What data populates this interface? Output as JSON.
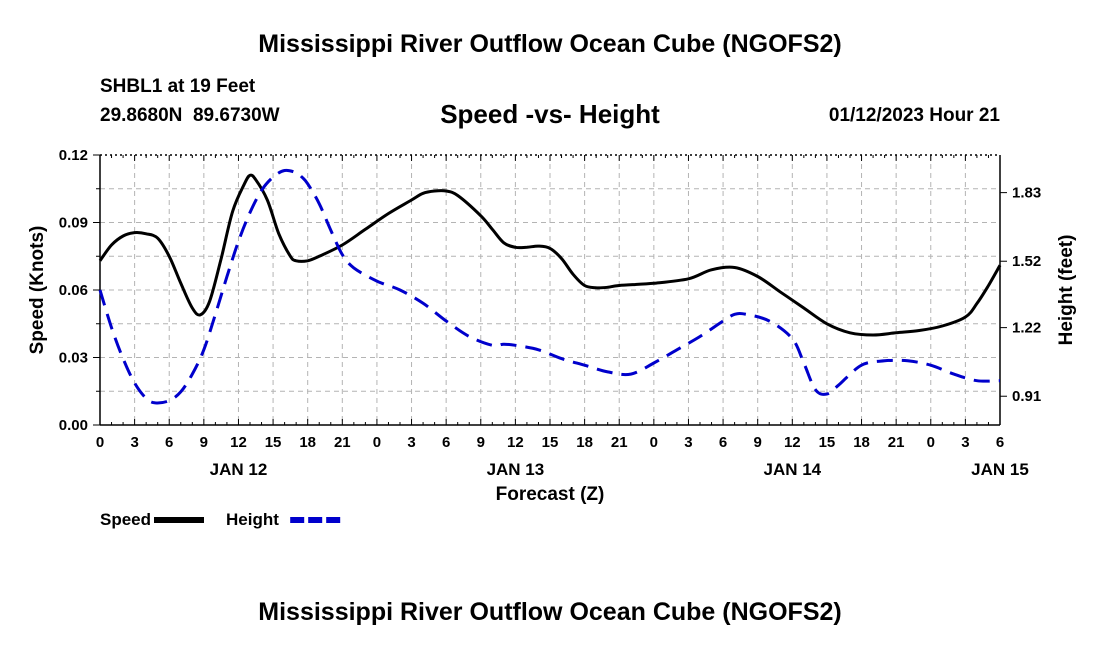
{
  "chart_data": {
    "type": "line",
    "title": "Mississippi River Outflow Ocean Cube (NGOFS2)",
    "title_repeat": "Mississippi River Outflow Ocean Cube (NGOFS2)",
    "subtitle": "Speed -vs- Height",
    "station": "SHBL1 at 19 Feet",
    "coordinates": "29.8680N  89.6730W",
    "datetime": "01/12/2023 Hour 21",
    "xlabel": "Forecast (Z)",
    "ylabel_left": "Speed (Knots)",
    "ylabel_right": "Height (feet)",
    "x_range": [
      0,
      78
    ],
    "y_left_range": [
      0,
      0.12
    ],
    "y_right_range": [
      0.78,
      2.0
    ],
    "x_ticks": [
      {
        "x": 0,
        "label": "0"
      },
      {
        "x": 3,
        "label": "3"
      },
      {
        "x": 6,
        "label": "6"
      },
      {
        "x": 9,
        "label": "9"
      },
      {
        "x": 12,
        "label": "12"
      },
      {
        "x": 15,
        "label": "15"
      },
      {
        "x": 18,
        "label": "18"
      },
      {
        "x": 21,
        "label": "21"
      },
      {
        "x": 24,
        "label": "0"
      },
      {
        "x": 27,
        "label": "3"
      },
      {
        "x": 30,
        "label": "6"
      },
      {
        "x": 33,
        "label": "9"
      },
      {
        "x": 36,
        "label": "12"
      },
      {
        "x": 39,
        "label": "15"
      },
      {
        "x": 42,
        "label": "18"
      },
      {
        "x": 45,
        "label": "21"
      },
      {
        "x": 48,
        "label": "0"
      },
      {
        "x": 51,
        "label": "3"
      },
      {
        "x": 54,
        "label": "6"
      },
      {
        "x": 57,
        "label": "9"
      },
      {
        "x": 60,
        "label": "12"
      },
      {
        "x": 63,
        "label": "15"
      },
      {
        "x": 66,
        "label": "18"
      },
      {
        "x": 69,
        "label": "21"
      },
      {
        "x": 72,
        "label": "0"
      },
      {
        "x": 75,
        "label": "3"
      },
      {
        "x": 78,
        "label": "6"
      }
    ],
    "date_labels": [
      {
        "x": 12,
        "label": "JAN 12"
      },
      {
        "x": 36,
        "label": "JAN 13"
      },
      {
        "x": 60,
        "label": "JAN 14"
      },
      {
        "x": 78,
        "label": "JAN 15"
      }
    ],
    "y_left_ticks": [
      {
        "v": 0,
        "label": "0.00"
      },
      {
        "v": 0.03,
        "label": "0.03"
      },
      {
        "v": 0.06,
        "label": "0.06"
      },
      {
        "v": 0.09,
        "label": "0.09"
      },
      {
        "v": 0.12,
        "label": "0.12"
      }
    ],
    "y_right_ticks": [
      {
        "v": 0.91,
        "label": "0.91"
      },
      {
        "v": 1.22,
        "label": "1.22"
      },
      {
        "v": 1.52,
        "label": "1.52"
      },
      {
        "v": 1.83,
        "label": "1.83"
      }
    ],
    "series": [
      {
        "name": "Speed",
        "axis": "left",
        "color": "#000000",
        "dash": "solid",
        "x": [
          0,
          1,
          2,
          3,
          4,
          5,
          6,
          7,
          8,
          8.7,
          9.5,
          10.5,
          11.5,
          12.5,
          13,
          13.5,
          14.5,
          15.5,
          16.5,
          17,
          18,
          19,
          21,
          23,
          25,
          27,
          28,
          29,
          30,
          31,
          33,
          34,
          35,
          36,
          37,
          38,
          39,
          40,
          41,
          42,
          43,
          44,
          45,
          48,
          51,
          53,
          55,
          57,
          59,
          61,
          63,
          65,
          67,
          69,
          71,
          73,
          75,
          76,
          77,
          78
        ],
        "values": [
          0.073,
          0.08,
          0.084,
          0.0855,
          0.085,
          0.083,
          0.075,
          0.063,
          0.052,
          0.049,
          0.055,
          0.074,
          0.095,
          0.107,
          0.111,
          0.109,
          0.1,
          0.085,
          0.075,
          0.073,
          0.073,
          0.075,
          0.08,
          0.087,
          0.094,
          0.1,
          0.103,
          0.104,
          0.104,
          0.102,
          0.093,
          0.087,
          0.081,
          0.079,
          0.079,
          0.0795,
          0.0785,
          0.074,
          0.067,
          0.062,
          0.061,
          0.0612,
          0.062,
          0.063,
          0.065,
          0.069,
          0.07,
          0.066,
          0.059,
          0.052,
          0.045,
          0.041,
          0.04,
          0.041,
          0.042,
          0.044,
          0.048,
          0.054,
          0.062,
          0.071
        ]
      },
      {
        "name": "Height",
        "axis": "right",
        "color": "#0000cc",
        "dash": "dashed",
        "x": [
          0,
          1,
          2,
          3,
          4,
          4.8,
          6,
          7,
          8,
          9,
          10,
          11,
          12,
          13,
          14,
          15,
          16,
          17,
          17.5,
          18,
          19,
          20,
          21,
          22,
          24,
          26,
          28,
          30,
          32,
          34,
          35,
          36,
          38,
          40,
          42,
          44,
          46,
          48,
          50,
          52,
          54,
          55,
          56,
          58,
          60,
          61,
          62,
          63,
          64,
          66,
          68,
          70,
          72,
          74,
          76,
          78
        ],
        "values": [
          1.39,
          1.22,
          1.08,
          0.97,
          0.9,
          0.88,
          0.89,
          0.93,
          1.01,
          1.12,
          1.28,
          1.45,
          1.61,
          1.74,
          1.84,
          1.9,
          1.93,
          1.92,
          1.9,
          1.87,
          1.78,
          1.66,
          1.55,
          1.49,
          1.43,
          1.39,
          1.33,
          1.25,
          1.18,
          1.14,
          1.145,
          1.14,
          1.12,
          1.08,
          1.05,
          1.02,
          1.01,
          1.06,
          1.12,
          1.18,
          1.25,
          1.28,
          1.28,
          1.25,
          1.17,
          1.06,
          0.94,
          0.92,
          0.96,
          1.05,
          1.07,
          1.07,
          1.05,
          1.01,
          0.98,
          0.98
        ]
      }
    ],
    "legend": [
      {
        "label": "Speed",
        "color": "#000000",
        "dash": "solid"
      },
      {
        "label": "Height",
        "color": "#0000cc",
        "dash": "dashed"
      }
    ],
    "grid": true,
    "legend_position": "bottom-left"
  }
}
